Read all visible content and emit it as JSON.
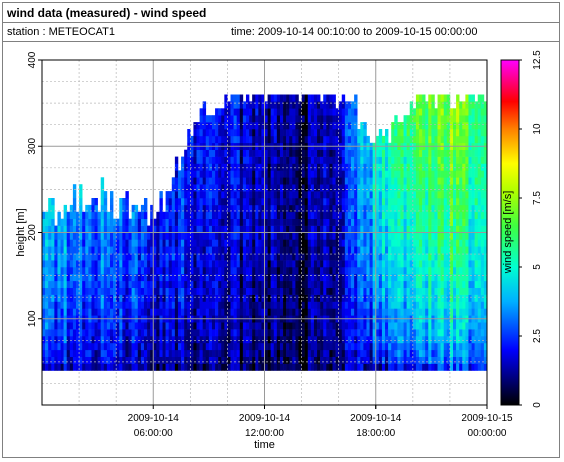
{
  "title": "wind data (measured) - wind speed",
  "station_label": "station : METEOCAT1",
  "time_label": "time: 2009-10-14 00:10:00 to 2009-10-15 00:00:00",
  "chart_data": {
    "type": "heatmap",
    "xlabel": "time",
    "ylabel": "height [m]",
    "colorbar_label": "wind speed [m/s]",
    "x_ticks": [
      {
        "line1": "2009-10-14",
        "line2": "06:00:00",
        "hours": 6
      },
      {
        "line1": "2009-10-14",
        "line2": "12:00:00",
        "hours": 12
      },
      {
        "line1": "",
        "line2": "18:00:00",
        "hours": 18
      },
      {
        "line1": "2009-10-14",
        "line2": "",
        "hours": 18
      },
      {
        "line1": "2009-10-15",
        "line2": "00:00:00",
        "hours": 24
      }
    ],
    "xlim_hours": [
      0,
      24
    ],
    "y_ticks": [
      100,
      200,
      300,
      400
    ],
    "ylim": [
      0,
      400
    ],
    "colorbar_ticks": [
      0,
      2.5,
      5,
      7.5,
      10,
      12.5
    ],
    "colorbar_range": [
      0,
      12.5
    ],
    "grid": true,
    "height_levels_m": [
      40,
      360
    ],
    "time_step_minutes": 10,
    "speed_profile": [
      {
        "hours": 0,
        "low": 1.5,
        "high": 4.5,
        "top": 220
      },
      {
        "hours": 3,
        "low": 1.5,
        "high": 4.0,
        "top": 240
      },
      {
        "hours": 6,
        "low": 1.2,
        "high": 3.0,
        "top": 210
      },
      {
        "hours": 8,
        "low": 1.0,
        "high": 2.5,
        "top": 320
      },
      {
        "hours": 10,
        "low": 0.8,
        "high": 2.0,
        "top": 360
      },
      {
        "hours": 12,
        "low": 0.7,
        "high": 1.5,
        "top": 360
      },
      {
        "hours": 14,
        "low": 0.6,
        "high": 0.9,
        "top": 360
      },
      {
        "hours": 16,
        "low": 0.8,
        "high": 1.5,
        "top": 360
      },
      {
        "hours": 18,
        "low": 1.5,
        "high": 5.5,
        "top": 300
      },
      {
        "hours": 20,
        "low": 1.8,
        "high": 6.5,
        "top": 360
      },
      {
        "hours": 22,
        "low": 2.5,
        "high": 7.5,
        "top": 360
      },
      {
        "hours": 24,
        "low": 2.0,
        "high": 5.5,
        "top": 360
      }
    ]
  }
}
